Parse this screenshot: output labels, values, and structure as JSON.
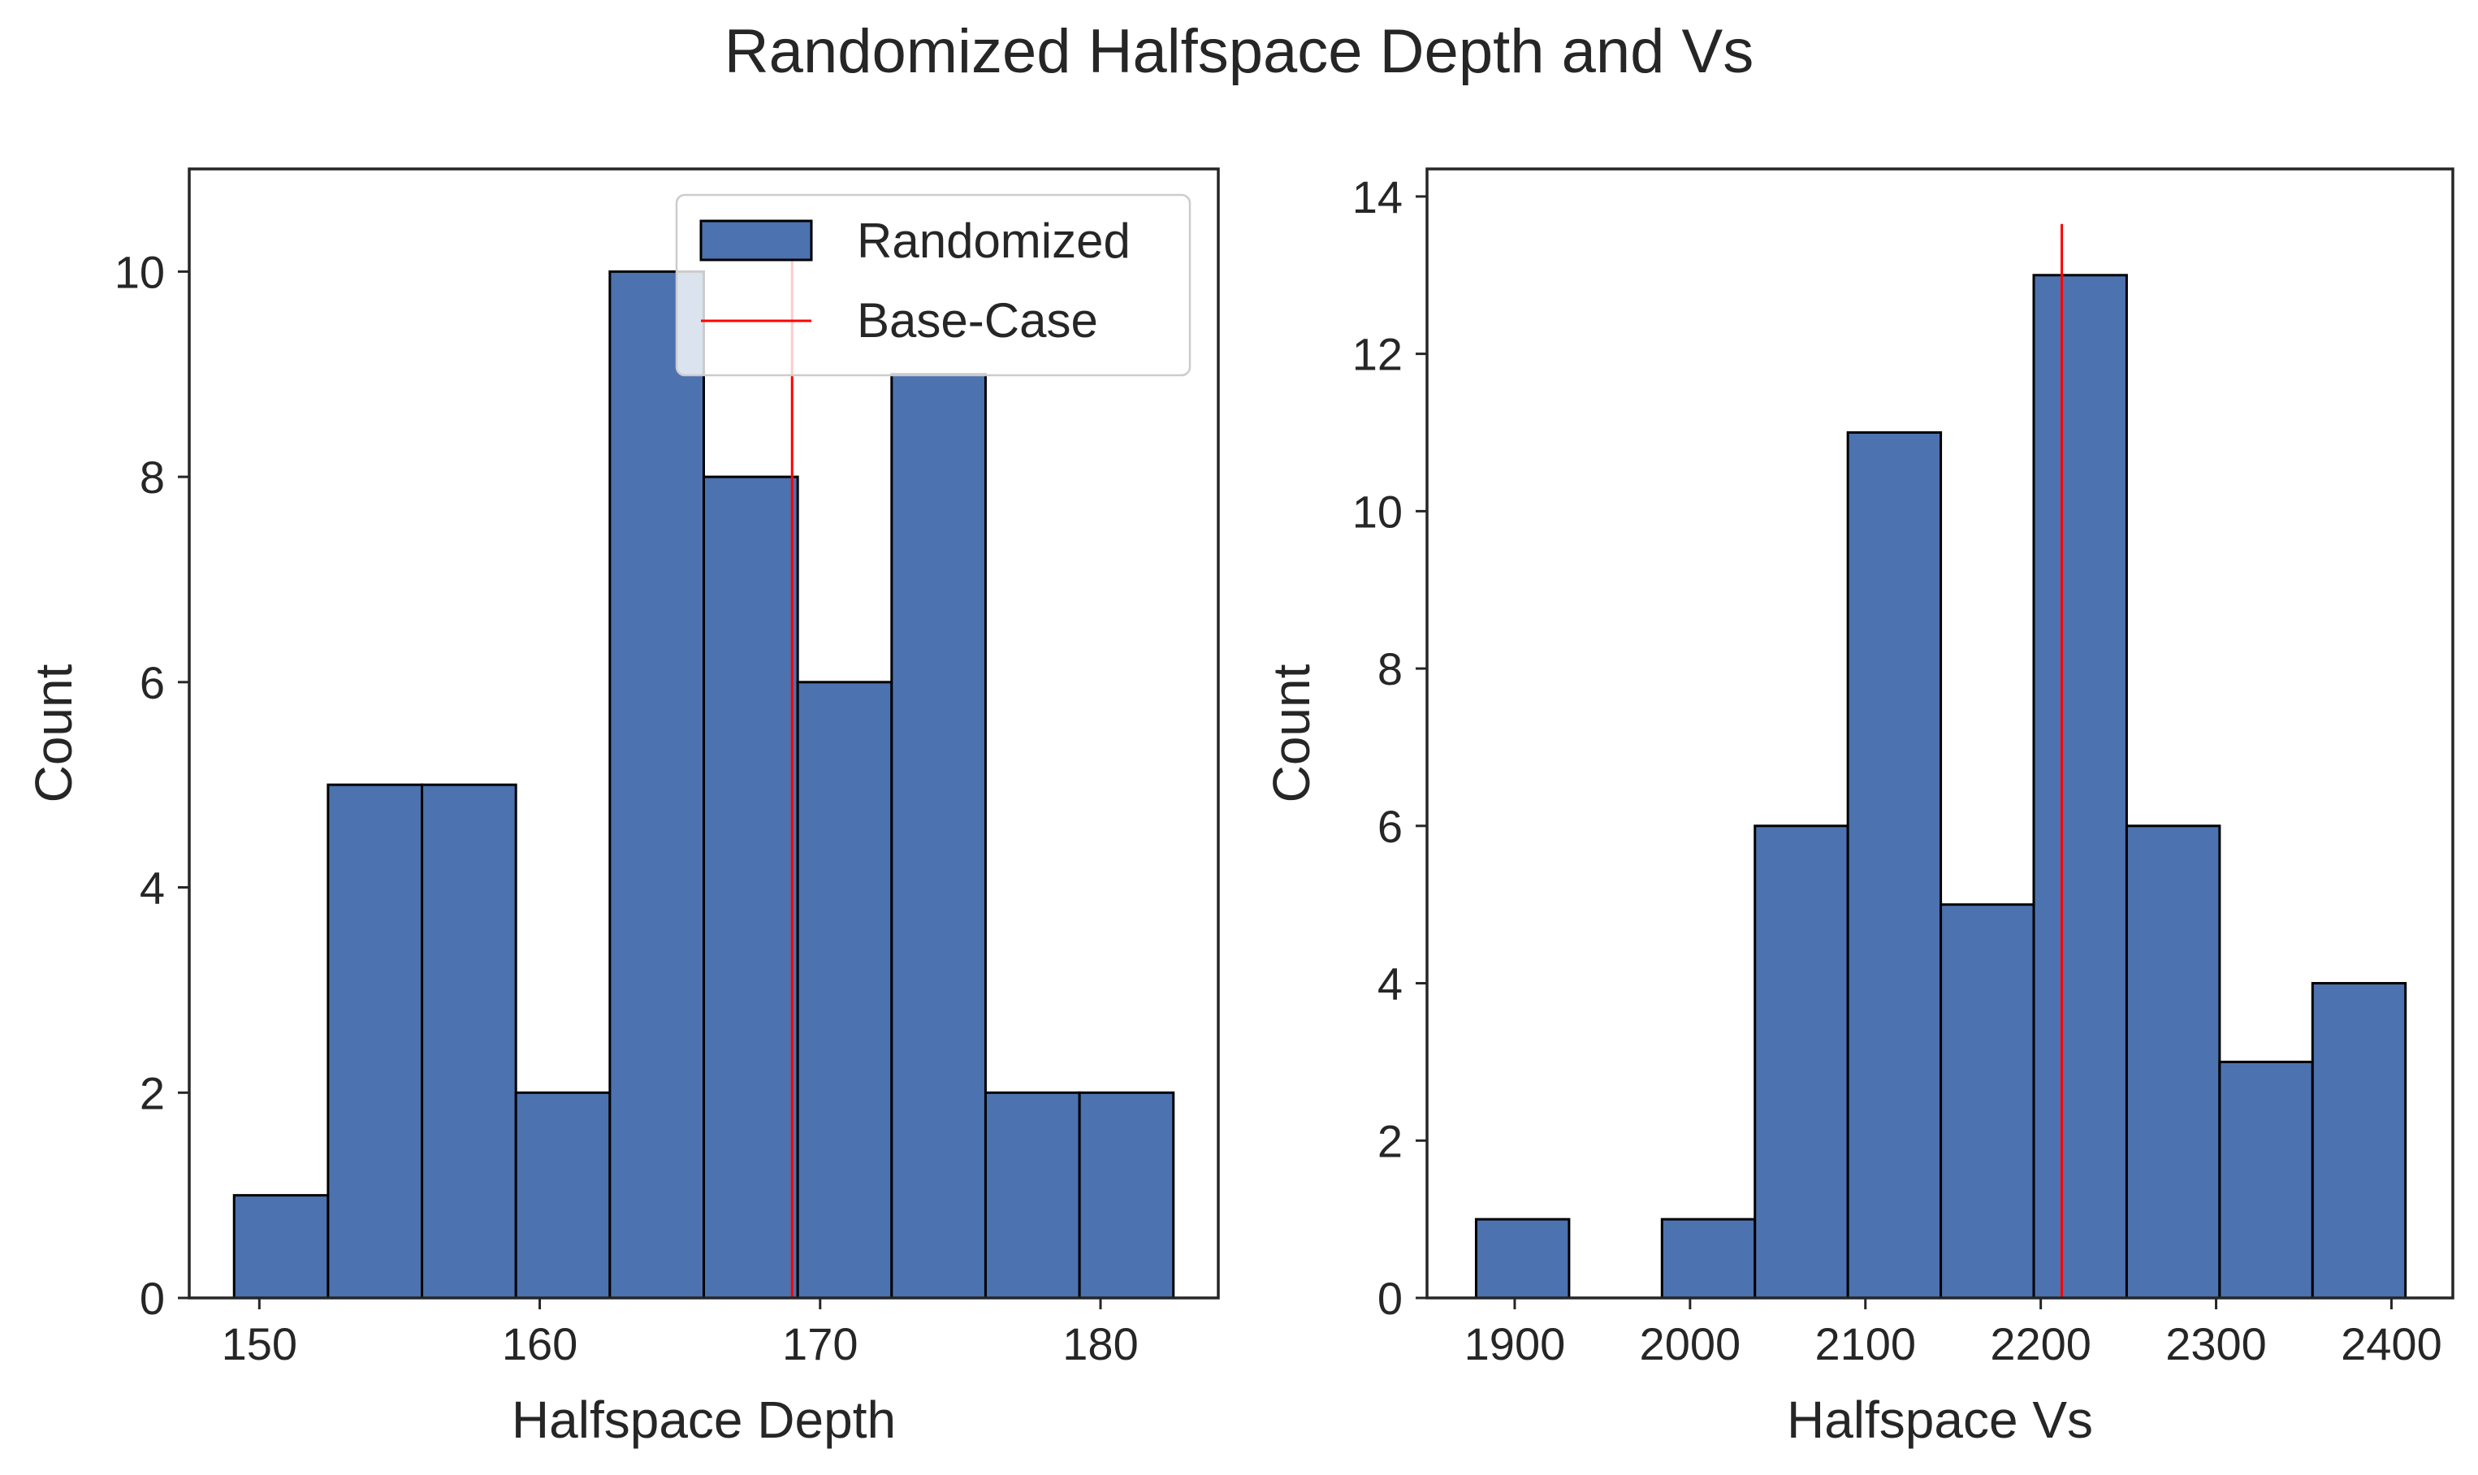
{
  "title": "Randomized Halfspace Depth and Vs",
  "colors": {
    "bar": "#4c72b0",
    "bar_edge": "#000000",
    "reference": "#ff0000",
    "axes": "#262626"
  },
  "chart_data": [
    {
      "type": "bar",
      "subtype": "histogram",
      "xlabel": "Halfspace Depth",
      "ylabel": "Count",
      "xlim": [
        147.5,
        184.2
      ],
      "ylim": [
        0,
        11
      ],
      "xticks": [
        150,
        160,
        170,
        180
      ],
      "yticks": [
        0,
        2,
        4,
        6,
        8,
        10
      ],
      "bin_edges": [
        149.1,
        152.45,
        155.8,
        159.15,
        162.5,
        165.85,
        169.2,
        172.55,
        175.9,
        179.25,
        182.6
      ],
      "counts": [
        1,
        5,
        5,
        2,
        10,
        8,
        6,
        9,
        2,
        2
      ],
      "reference_line": {
        "name": "Base-Case",
        "x": 169,
        "y_top": 10.2
      },
      "legend": {
        "position": "upper right",
        "entries": [
          "Randomized",
          "Base-Case"
        ]
      }
    },
    {
      "type": "bar",
      "subtype": "histogram",
      "xlabel": "Halfspace Vs",
      "ylabel": "Count",
      "xlim": [
        1850,
        2435
      ],
      "ylim": [
        0,
        14.35
      ],
      "xticks": [
        1900,
        2000,
        2100,
        2200,
        2300,
        2400
      ],
      "yticks": [
        0,
        2,
        4,
        6,
        8,
        10,
        12,
        14
      ],
      "bin_edges": [
        1878,
        1931,
        1984,
        2037,
        2090,
        2143,
        2196,
        2249,
        2302,
        2355,
        2408
      ],
      "counts": [
        1,
        0,
        1,
        6,
        11,
        5,
        13,
        6,
        3,
        4
      ],
      "reference_line": {
        "name": "Base-Case",
        "x": 2212,
        "y_top": 13.65
      }
    }
  ]
}
